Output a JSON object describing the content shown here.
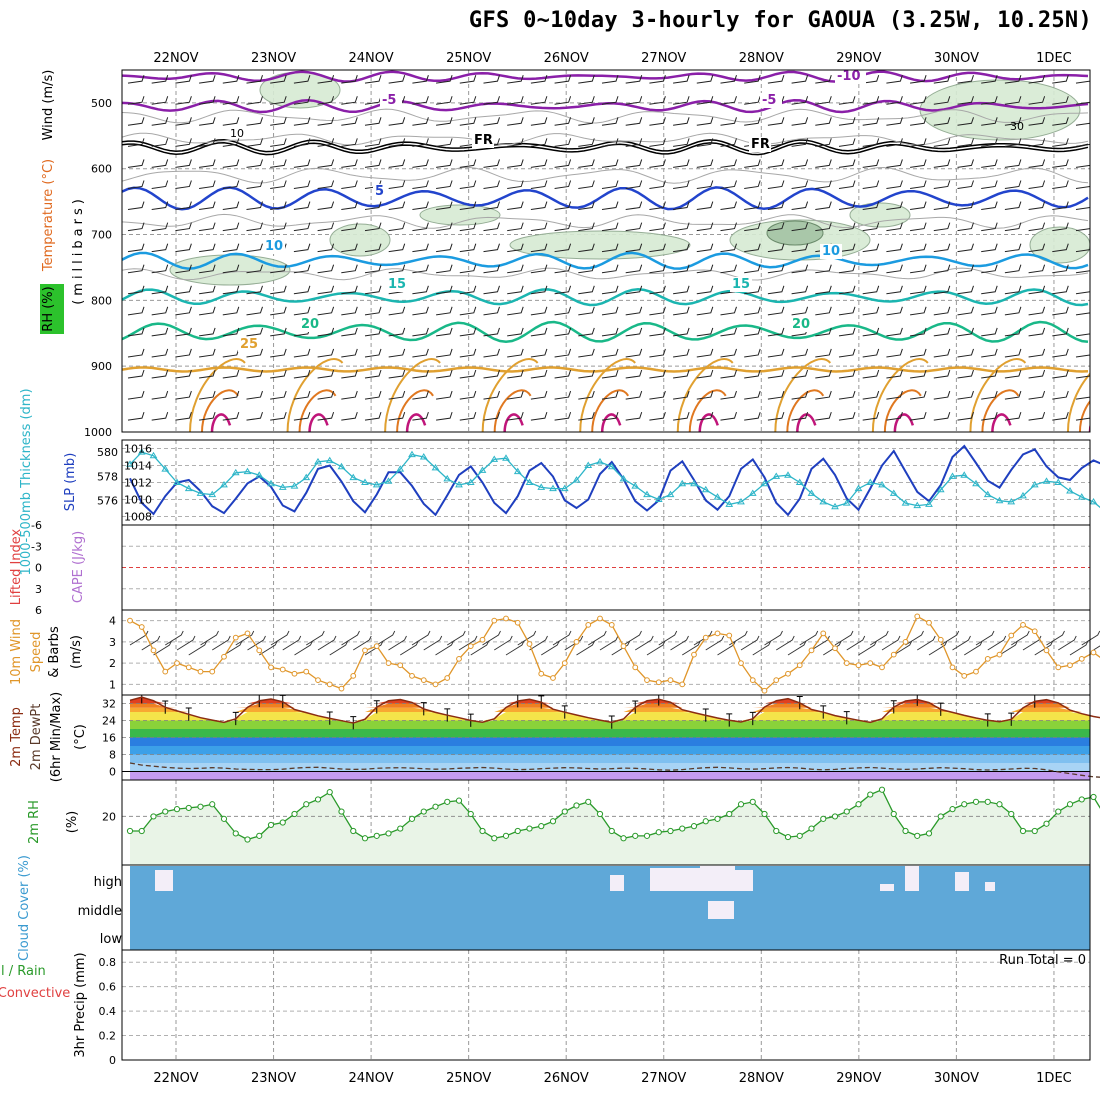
{
  "title": "GFS 0~10day 3-hourly for GAOUA (3.25W, 10.25N)",
  "dates": [
    "22NOV",
    "23NOV",
    "24NOV",
    "25NOV",
    "26NOV",
    "27NOV",
    "28NOV",
    "29NOV",
    "30NOV",
    "1DEC"
  ],
  "chart_data": [
    {
      "type": "contour",
      "panel": "upper-air cross-section",
      "ylabel": "(millibars)",
      "legend_labels": [
        "Wind (m/s)",
        "Temperature (°C)",
        "RH (%)"
      ],
      "pressure_ticks": [
        500,
        600,
        700,
        800,
        900,
        1000
      ],
      "ylim": [
        1000,
        450
      ],
      "temperature_contours": [
        {
          "label": "-10",
          "color": "#8a1fa8",
          "level_mb": 460
        },
        {
          "label": "-5",
          "color": "#8a1fa8",
          "level_mb": 505
        },
        {
          "label": "FR",
          "color": "#000000",
          "level_mb": 565
        },
        {
          "label": "5",
          "color": "#2244cc",
          "level_mb": 645
        },
        {
          "label": "10",
          "color": "#1b9be0",
          "level_mb": 740
        },
        {
          "label": "15",
          "color": "#1bb5b0",
          "level_mb": 795
        },
        {
          "label": "20",
          "color": "#19b888",
          "level_mb": 848
        },
        {
          "label": "25",
          "color": "#e0a030",
          "level_mb": 905
        }
      ],
      "rh_contour_labels": [
        "10",
        "30"
      ]
    },
    {
      "type": "line",
      "panel": "thickness & SLP",
      "ylabel_left": "1000-500mb Thickness (dm)",
      "ylabel_right": "SLP (mb)",
      "left_ticks": [
        580,
        578,
        576
      ],
      "right_ticks": [
        1016,
        1014,
        1012,
        1010,
        1008
      ],
      "series": [
        {
          "name": "1000-500mb Thickness (dm)",
          "color": "#2db5c8",
          "marker": "triangle",
          "values": [
            579.0,
            580.0,
            579.7,
            578.6,
            577.5,
            577.0,
            576.6,
            576.5,
            577.3,
            578.3,
            578.4,
            578.1,
            577.4,
            577.1,
            577.2,
            577.9,
            579.2,
            579.3,
            578.8,
            577.9,
            577.5,
            577.3,
            577.6,
            578.6,
            579.8,
            579.6,
            578.7,
            577.8,
            577.3,
            577.5,
            578.5,
            579.4,
            579.5,
            578.4,
            577.5,
            577.1,
            577.0,
            577.0,
            577.7,
            578.9,
            579.2,
            578.8,
            577.8,
            577.2,
            576.5,
            576.1,
            576.5,
            577.4,
            577.4,
            576.9,
            576.3,
            575.7,
            575.9,
            576.6,
            577.4,
            578.0,
            578.1,
            577.5,
            576.6,
            575.9,
            575.5,
            575.8,
            577.0,
            577.5,
            577.3,
            576.6,
            575.8,
            575.6,
            575.7,
            576.9,
            578.0,
            578.1,
            577.4,
            576.5,
            576.0,
            575.9,
            576.4,
            577.3,
            577.6,
            577.5,
            576.8,
            576.3,
            575.9,
            575.1
          ]
        },
        {
          "name": "SLP (mb)",
          "color": "#1f3fbf",
          "marker": "none",
          "values": [
            1012.5,
            1009.6,
            1008.3,
            1010.4,
            1012.0,
            1012.3,
            1011.0,
            1009.2,
            1008.4,
            1010.1,
            1011.9,
            1012.7,
            1011.5,
            1009.3,
            1008.6,
            1010.8,
            1013.6,
            1014.0,
            1012.1,
            1009.8,
            1008.5,
            1010.6,
            1013.2,
            1013.2,
            1011.6,
            1009.5,
            1008.2,
            1010.5,
            1012.9,
            1013.9,
            1012.0,
            1009.6,
            1008.4,
            1010.4,
            1013.4,
            1014.3,
            1012.7,
            1009.9,
            1009.0,
            1010.0,
            1013.0,
            1014.4,
            1012.4,
            1009.8,
            1008.7,
            1009.9,
            1013.4,
            1014.5,
            1012.3,
            1009.9,
            1008.8,
            1010.4,
            1013.6,
            1014.7,
            1012.6,
            1009.6,
            1008.2,
            1010.1,
            1013.6,
            1014.8,
            1012.9,
            1010.1,
            1008.8,
            1011.3,
            1014.0,
            1015.7,
            1013.3,
            1010.9,
            1009.8,
            1011.7,
            1015.0,
            1016.3,
            1014.3,
            1012.2,
            1011.4,
            1013.5,
            1015.3,
            1015.9,
            1013.9,
            1012.6,
            1012.3,
            1013.7,
            1014.6,
            1014.0
          ]
        }
      ]
    },
    {
      "type": "line",
      "panel": "stability",
      "ylabel_left": "Lifted Index",
      "ylabel_right": "CAPE (J/kg)",
      "left_ticks": [
        "-6",
        "-3",
        "0",
        "3",
        "6"
      ],
      "lifted_index_ylim": [
        -6,
        6
      ],
      "zero_line": 0
    },
    {
      "type": "line",
      "panel": "10m wind",
      "ylabel": "10m Wind Speed & Barbs (m/s)",
      "ticks": [
        4,
        3,
        2,
        1
      ],
      "ylim": [
        0.5,
        4.5
      ],
      "series": [
        {
          "name": "10m Wind Speed",
          "color": "#e0962a",
          "marker": "circle",
          "values": [
            4.0,
            3.7,
            2.6,
            1.6,
            2.0,
            1.8,
            1.6,
            1.6,
            2.3,
            3.2,
            3.4,
            2.6,
            1.8,
            1.7,
            1.5,
            1.6,
            1.2,
            1.0,
            0.8,
            1.4,
            2.6,
            2.8,
            2.0,
            1.9,
            1.4,
            1.2,
            1.0,
            1.3,
            2.2,
            2.8,
            3.1,
            4.0,
            4.1,
            3.9,
            2.9,
            1.5,
            1.3,
            2.0,
            3.0,
            3.8,
            4.1,
            3.8,
            2.8,
            1.8,
            1.2,
            1.1,
            1.2,
            1.0,
            2.4,
            3.2,
            3.4,
            3.3,
            2.0,
            1.2,
            0.7,
            1.2,
            1.5,
            1.9,
            2.6,
            3.4,
            2.7,
            2.0,
            1.9,
            2.0,
            1.8,
            2.4,
            3.0,
            4.2,
            3.9,
            3.1,
            1.8,
            1.4,
            1.6,
            2.2,
            2.4,
            3.3,
            3.8,
            3.5,
            2.6,
            1.8,
            1.9,
            2.2,
            2.5,
            2.1
          ]
        }
      ]
    },
    {
      "type": "area",
      "panel": "2m temperature",
      "ylabel": "2m Temp 2m DewPt (6hr Min/Max) (°C)",
      "ticks": [
        32,
        24,
        16,
        8,
        0
      ],
      "ylim": [
        -4,
        36
      ],
      "series": [
        {
          "name": "2m Temp",
          "color": "#8b2c12",
          "values": [
            33.5,
            35.0,
            33.3,
            30.2,
            28.5,
            26.9,
            25.3,
            24.2,
            23.1,
            24.8,
            30.2,
            33.3,
            34.1,
            32.8,
            29.2,
            27.7,
            26.2,
            25.0,
            23.9,
            22.8,
            24.6,
            30.3,
            33.3,
            33.9,
            32.5,
            29.4,
            27.8,
            26.5,
            25.3,
            24.0,
            23.2,
            24.8,
            30.1,
            33.2,
            34.0,
            32.6,
            29.3,
            27.9,
            26.6,
            25.3,
            24.2,
            23.1,
            24.7,
            30.2,
            33.3,
            34.0,
            32.6,
            29.1,
            27.7,
            26.4,
            25.2,
            24.1,
            23.3,
            24.8,
            30.3,
            33.3,
            34.3,
            32.3,
            29.2,
            27.9,
            26.3,
            25.2,
            24.1,
            23.1,
            24.8,
            30.3,
            33.2,
            33.9,
            32.4,
            29.2,
            27.8,
            26.4,
            25.2,
            24.1,
            23.4,
            24.5,
            30.0,
            33.0,
            33.8,
            32.3,
            28.9,
            27.2,
            25.9,
            24.9
          ]
        },
        {
          "name": "2m DewPt",
          "color": "#5a3a2a",
          "dash": true,
          "values": [
            4.0,
            3.0,
            2.5,
            2.0,
            1.6,
            1.4,
            1.5,
            1.8,
            1.6,
            1.2,
            1.0,
            0.9,
            0.9,
            1.1,
            1.6,
            1.9,
            2.0,
            1.6,
            1.2,
            1.0,
            1.1,
            1.5,
            1.7,
            1.8,
            1.6,
            1.3,
            1.1,
            1.2,
            1.5,
            1.7,
            1.9,
            1.6,
            1.2,
            0.9,
            1.0,
            1.3,
            1.6,
            1.8,
            1.7,
            1.4,
            1.2,
            1.3,
            1.6,
            1.5,
            1.2,
            0.8,
            0.6,
            0.9,
            1.4,
            1.8,
            2.0,
            1.7,
            1.3,
            1.1,
            1.3,
            1.7,
            1.9,
            1.6,
            1.1,
            0.8,
            1.0,
            1.4,
            1.7,
            1.9,
            1.6,
            1.2,
            1.0,
            1.2,
            1.5,
            1.8,
            1.6,
            1.3,
            0.9,
            0.7,
            0.9,
            1.2,
            1.5,
            1.4,
            0.8,
            -0.2,
            -1.0,
            -1.8,
            -2.5,
            -2.8
          ]
        }
      ]
    },
    {
      "type": "area",
      "panel": "2m relative humidity",
      "ylabel": "2m RH (%)",
      "ticks": [
        20
      ],
      "ylim": [
        0,
        35
      ],
      "series": [
        {
          "name": "2m RH",
          "color": "#2a9a2a",
          "marker": "circle",
          "values": [
            14.0,
            14.0,
            20.0,
            22.0,
            23.0,
            23.5,
            24.0,
            25.0,
            19.0,
            13.0,
            10.5,
            12.0,
            16.5,
            17.5,
            21.0,
            25.0,
            27.0,
            30.0,
            22.0,
            14.0,
            11.0,
            12.0,
            13.0,
            15.0,
            19.0,
            22.0,
            24.0,
            26.0,
            26.5,
            21.0,
            14.0,
            11.0,
            12.0,
            14.0,
            15.0,
            16.0,
            18.0,
            22.0,
            24.5,
            26.0,
            21.0,
            14.0,
            11.0,
            12.0,
            12.0,
            13.5,
            14.0,
            15.0,
            16.0,
            18.0,
            19.0,
            21.0,
            25.0,
            26.0,
            21.0,
            14.0,
            11.5,
            12.0,
            15.0,
            19.0,
            20.0,
            22.0,
            25.0,
            29.0,
            31.0,
            21.0,
            14.0,
            12.0,
            13.0,
            20.0,
            23.0,
            25.0,
            26.0,
            26.0,
            25.0,
            21.0,
            14.0,
            14.0,
            17.0,
            22.0,
            25.0,
            27.0,
            28.0,
            20.0
          ]
        }
      ]
    },
    {
      "type": "bar",
      "panel": "cloud cover",
      "ylabel": "Cloud Cover (%)",
      "categories": [
        "high",
        "middle",
        "low"
      ],
      "high_cover": [
        0,
        0,
        0,
        100,
        0,
        0,
        0,
        0,
        0,
        0,
        0,
        0,
        0,
        0,
        0,
        0,
        0,
        0,
        0,
        0,
        0,
        0,
        0,
        0,
        0,
        0,
        0,
        0,
        0,
        0,
        0,
        0,
        0,
        0,
        0,
        0,
        0,
        0,
        0,
        0,
        0,
        0,
        0,
        0,
        0,
        0,
        0,
        0,
        0,
        0,
        0,
        0,
        0,
        0,
        0,
        0,
        0,
        0,
        0,
        0,
        0,
        0,
        0,
        0,
        0,
        0,
        0,
        0,
        0,
        0,
        0,
        0,
        0,
        0,
        0,
        0,
        0,
        0,
        0,
        0,
        0,
        0,
        0,
        0
      ],
      "middle_cover": [
        0,
        0,
        0,
        0,
        0,
        0,
        0,
        0,
        0,
        0,
        0,
        0,
        0,
        0,
        0,
        0,
        0,
        0,
        0,
        0,
        0,
        0,
        0,
        0,
        0,
        0,
        0,
        0,
        0,
        0,
        0,
        0,
        0,
        0,
        0,
        0,
        0,
        0,
        0,
        0,
        0,
        0,
        0,
        0,
        0,
        0,
        0,
        0,
        0,
        0,
        0,
        0,
        0,
        0,
        0,
        0,
        0,
        0,
        0,
        0,
        0,
        0,
        0,
        0,
        0,
        0,
        0,
        0,
        0,
        0,
        0,
        0,
        0,
        0,
        0,
        0,
        0,
        0,
        0,
        0,
        0,
        0,
        0,
        0
      ]
    },
    {
      "type": "bar",
      "panel": "precipitation",
      "ylabel": "3hr Precip (mm)",
      "legend_left": [
        "Total / Rain",
        "Convective"
      ],
      "ticks": [
        "0.8",
        "0.6",
        "0.4",
        "0.2",
        "0"
      ],
      "ylim": [
        0,
        0.9
      ],
      "run_total_label": "Run Total = 0",
      "values": []
    }
  ]
}
